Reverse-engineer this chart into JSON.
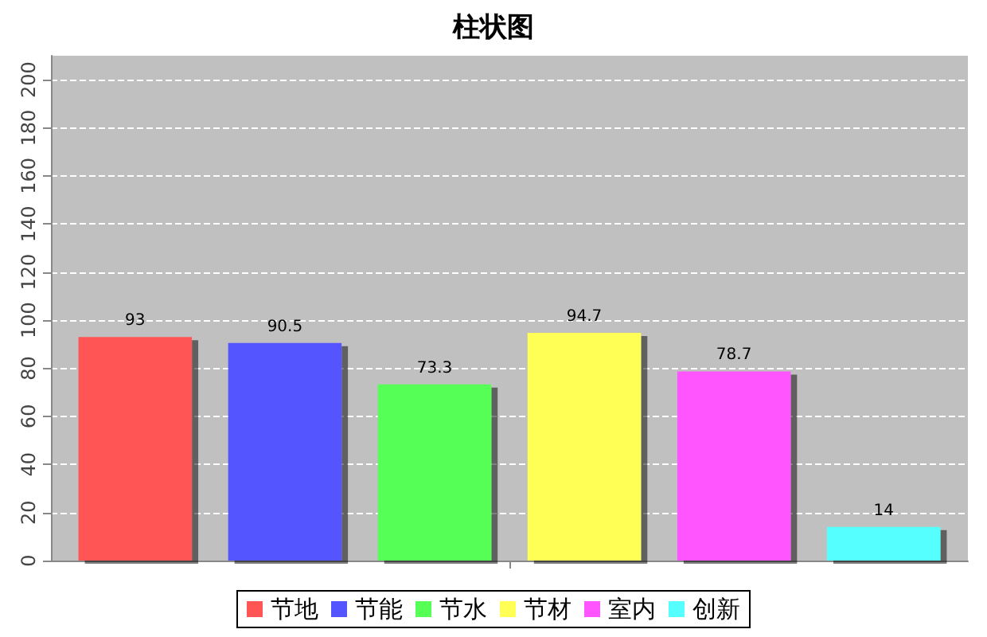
{
  "chart_data": {
    "type": "bar",
    "title": "柱状图",
    "categories": [
      null
    ],
    "series": [
      {
        "name": "节地",
        "color": "#ff5555",
        "values": [
          93
        ]
      },
      {
        "name": "节能",
        "color": "#5555ff",
        "values": [
          90.5
        ]
      },
      {
        "name": "节水",
        "color": "#55ff55",
        "values": [
          73.3
        ]
      },
      {
        "name": "节材",
        "color": "#ffff55",
        "values": [
          94.7
        ]
      },
      {
        "name": "室内",
        "color": "#ff55ff",
        "values": [
          78.7
        ]
      },
      {
        "name": "创新",
        "color": "#55ffff",
        "values": [
          14
        ]
      }
    ],
    "ylim": [
      0,
      210
    ],
    "yticks": [
      0,
      20,
      40,
      60,
      80,
      100,
      120,
      140,
      160,
      180,
      200
    ],
    "grid": "y",
    "legend": "bottom",
    "data_labels": true
  }
}
